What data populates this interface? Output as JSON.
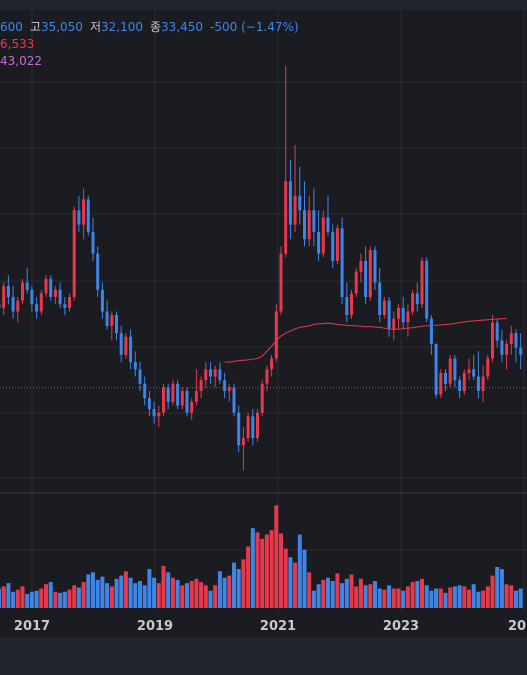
{
  "legend": {
    "open_value": "600",
    "high_label": "고",
    "high_value": "35,050",
    "low_label": "저",
    "low_value": "32,100",
    "close_label": "종",
    "close_value": "33,450",
    "change": "-500 (−1.47%)",
    "ma1_value": "6,533",
    "ma2_value": "43,022"
  },
  "colors": {
    "background": "#1b1c22",
    "up": "#e6394b",
    "down": "#3d86e8",
    "ma_line": "#e6394b",
    "grid": "#2a2c33"
  },
  "chart_data": {
    "type": "candlestick",
    "x_tick_labels": [
      "2017",
      "2019",
      "2021",
      "2023",
      "202"
    ],
    "price_ylim": [
      20000,
      85000
    ],
    "price_reference_line": 33450,
    "candles": [
      [
        45000,
        47000,
        42000,
        44500
      ],
      [
        44500,
        48000,
        43500,
        47500
      ],
      [
        47500,
        49000,
        45000,
        46000
      ],
      [
        46000,
        47500,
        43000,
        44000
      ],
      [
        44000,
        46000,
        42500,
        45500
      ],
      [
        45500,
        48500,
        45000,
        48000
      ],
      [
        48000,
        50000,
        46500,
        47000
      ],
      [
        47000,
        47500,
        44000,
        45000
      ],
      [
        45000,
        46000,
        43000,
        44000
      ],
      [
        44000,
        47000,
        43500,
        46500
      ],
      [
        46500,
        49000,
        46000,
        48500
      ],
      [
        48500,
        49000,
        45500,
        46000
      ],
      [
        46000,
        47500,
        45000,
        47000
      ],
      [
        47000,
        48000,
        44500,
        45000
      ],
      [
        45000,
        46000,
        43500,
        44500
      ],
      [
        44500,
        46500,
        44000,
        46000
      ],
      [
        46000,
        58500,
        45500,
        58000
      ],
      [
        58000,
        60000,
        55000,
        56000
      ],
      [
        56000,
        61000,
        54000,
        59500
      ],
      [
        59500,
        60000,
        54500,
        55000
      ],
      [
        55000,
        57000,
        51000,
        52000
      ],
      [
        52000,
        53000,
        46000,
        47000
      ],
      [
        47000,
        48000,
        43000,
        44000
      ],
      [
        44000,
        45500,
        41500,
        42000
      ],
      [
        42000,
        44000,
        40000,
        43500
      ],
      [
        43500,
        44000,
        40000,
        41000
      ],
      [
        41000,
        42000,
        37000,
        38000
      ],
      [
        38000,
        41000,
        37500,
        40500
      ],
      [
        40500,
        41500,
        36000,
        37000
      ],
      [
        37000,
        38500,
        35000,
        36000
      ],
      [
        36000,
        37000,
        33000,
        34000
      ],
      [
        34000,
        35000,
        31000,
        32000
      ],
      [
        32000,
        33000,
        29500,
        30500
      ],
      [
        30500,
        31500,
        28500,
        29500
      ],
      [
        29500,
        31000,
        28000,
        30000
      ],
      [
        30000,
        34000,
        29500,
        33500
      ],
      [
        33500,
        34000,
        30500,
        31500
      ],
      [
        31500,
        34500,
        31000,
        34000
      ],
      [
        34000,
        34500,
        30500,
        31000
      ],
      [
        31000,
        33500,
        30500,
        33000
      ],
      [
        33000,
        33500,
        29500,
        30000
      ],
      [
        30000,
        32000,
        29000,
        31500
      ],
      [
        31500,
        36000,
        31000,
        33000
      ],
      [
        33000,
        35000,
        32000,
        34500
      ],
      [
        34500,
        37000,
        33500,
        36000
      ],
      [
        36000,
        37000,
        34000,
        35000
      ],
      [
        35000,
        36500,
        33500,
        36000
      ],
      [
        36000,
        37000,
        34000,
        34500
      ],
      [
        34500,
        35500,
        32000,
        33000
      ],
      [
        33000,
        34000,
        31500,
        33500
      ],
      [
        33500,
        34000,
        29500,
        30000
      ],
      [
        30000,
        31000,
        24500,
        25500
      ],
      [
        25500,
        28000,
        22000,
        26500
      ],
      [
        26500,
        30000,
        26000,
        29500
      ],
      [
        29500,
        30500,
        25500,
        26500
      ],
      [
        26500,
        30500,
        26000,
        30000
      ],
      [
        30000,
        34500,
        29500,
        34000
      ],
      [
        34000,
        36500,
        33000,
        36000
      ],
      [
        36000,
        38000,
        35000,
        37500
      ],
      [
        37500,
        45000,
        37000,
        44000
      ],
      [
        44000,
        53000,
        43500,
        52000
      ],
      [
        52000,
        78000,
        51500,
        62000
      ],
      [
        62000,
        65000,
        54000,
        56000
      ],
      [
        56000,
        67000,
        55000,
        60000
      ],
      [
        60000,
        64000,
        56000,
        58000
      ],
      [
        58000,
        62000,
        53000,
        54000
      ],
      [
        54000,
        60000,
        53000,
        58000
      ],
      [
        58000,
        61000,
        53000,
        55000
      ],
      [
        55000,
        58000,
        51000,
        52000
      ],
      [
        52000,
        58000,
        51500,
        57000
      ],
      [
        57000,
        60000,
        54500,
        55000
      ],
      [
        55000,
        56000,
        50000,
        51000
      ],
      [
        51000,
        56000,
        50500,
        55500
      ],
      [
        55500,
        57000,
        45000,
        46000
      ],
      [
        46000,
        48000,
        42500,
        43500
      ],
      [
        43500,
        47000,
        43000,
        46500
      ],
      [
        46500,
        50000,
        46000,
        49500
      ],
      [
        49500,
        52000,
        48000,
        51000
      ],
      [
        51000,
        53000,
        45000,
        46000
      ],
      [
        46000,
        53000,
        45500,
        52500
      ],
      [
        52500,
        53000,
        47000,
        48000
      ],
      [
        48000,
        50000,
        42500,
        43500
      ],
      [
        43500,
        46000,
        43000,
        45500
      ],
      [
        45500,
        46000,
        40500,
        41500
      ],
      [
        41500,
        44000,
        40000,
        43000
      ],
      [
        43000,
        45000,
        41500,
        44500
      ],
      [
        44500,
        46000,
        41500,
        42500
      ],
      [
        42500,
        45000,
        40500,
        44000
      ],
      [
        44000,
        47000,
        43500,
        46500
      ],
      [
        46500,
        48000,
        44000,
        45000
      ],
      [
        45000,
        51500,
        44500,
        51000
      ],
      [
        51000,
        51500,
        42500,
        43000
      ],
      [
        43000,
        43500,
        38000,
        39500
      ],
      [
        39500,
        39600,
        32000,
        32500
      ],
      [
        32500,
        36000,
        32000,
        35500
      ],
      [
        35500,
        36000,
        33000,
        34000
      ],
      [
        34000,
        38000,
        33500,
        37500
      ],
      [
        37500,
        38000,
        33500,
        34500
      ],
      [
        34500,
        35000,
        32000,
        33000
      ],
      [
        33000,
        36000,
        32500,
        35500
      ],
      [
        35500,
        37500,
        34500,
        36000
      ],
      [
        36000,
        38000,
        34500,
        35000
      ],
      [
        35000,
        38500,
        32000,
        33000
      ],
      [
        33000,
        36500,
        31500,
        35000
      ],
      [
        35000,
        38000,
        34500,
        37500
      ],
      [
        37500,
        43500,
        37000,
        42500
      ],
      [
        42500,
        43000,
        39000,
        40000
      ],
      [
        40000,
        41500,
        37000,
        38000
      ],
      [
        38000,
        40000,
        36000,
        39500
      ],
      [
        39500,
        42000,
        38000,
        41000
      ],
      [
        41000,
        41500,
        37000,
        39000
      ],
      [
        39000,
        41000,
        36000,
        38000
      ]
    ],
    "ma_line": {
      "name": "",
      "start_index": 48,
      "values": [
        37000,
        37000,
        37100,
        37200,
        37250,
        37300,
        37400,
        37500,
        37800,
        38500,
        39200,
        40000,
        40600,
        41000,
        41300,
        41600,
        41800,
        41900,
        42000,
        42200,
        42300,
        42300,
        42400,
        42300,
        42200,
        42150,
        42100,
        42050,
        42000,
        41950,
        41900,
        41900,
        41850,
        41800,
        41700,
        41600,
        41500,
        41550,
        41600,
        41700,
        41750,
        41850,
        41950,
        42000,
        42050,
        42100,
        42150,
        42200,
        42250,
        42350,
        42450,
        42550,
        42650,
        42700,
        42750,
        42800,
        42850,
        42900,
        42950,
        43000,
        43020
      ]
    },
    "volume_ylim": [
      0,
      10000000
    ],
    "volumes": [
      1800000,
      2000000,
      2300000,
      1500000,
      1700000,
      2000000,
      1300000,
      1500000,
      1600000,
      1800000,
      2200000,
      2400000,
      1500000,
      1400000,
      1500000,
      1700000,
      2100000,
      1900000,
      2400000,
      3100000,
      3300000,
      2600000,
      2900000,
      2300000,
      2000000,
      2700000,
      3000000,
      3400000,
      2800000,
      2300000,
      2500000,
      2100000,
      3600000,
      2800000,
      2300000,
      3900000,
      3300000,
      2800000,
      2600000,
      2100000,
      2300000,
      2500000,
      2700000,
      2400000,
      2100000,
      1600000,
      2100000,
      3400000,
      2800000,
      3000000,
      4200000,
      3600000,
      4500000,
      5700000,
      7400000,
      7000000,
      6400000,
      6800000,
      7200000,
      9500000,
      6900000,
      5500000,
      4700000,
      4200000,
      6800000,
      5400000,
      3300000,
      1600000,
      2200000,
      2600000,
      2800000,
      2500000,
      3200000,
      2300000,
      2700000,
      3100000,
      2000000,
      2700000,
      2100000,
      2200000,
      2500000,
      1800000,
      1700000,
      2100000,
      1800000,
      1800000,
      1600000,
      2000000,
      2400000,
      2500000,
      2700000,
      2100000,
      1600000,
      1800000,
      1800000,
      1400000,
      1900000,
      2000000,
      2100000,
      2000000,
      1700000,
      2200000,
      1500000,
      1600000,
      2000000,
      3000000,
      3800000,
      3600000,
      2200000,
      2100000,
      1600000,
      1800000
    ]
  }
}
